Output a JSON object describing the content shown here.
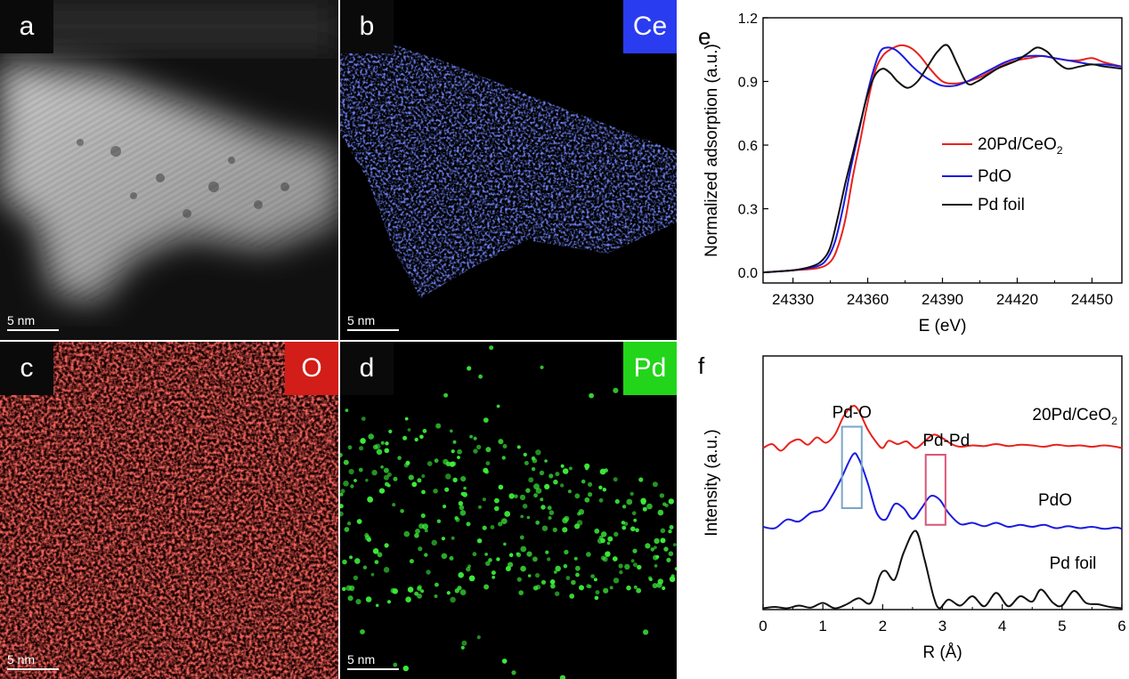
{
  "micrographs": [
    {
      "label": "a",
      "element": "",
      "scale_bar": "5 nm",
      "color": "#ffffff"
    },
    {
      "label": "b",
      "element": "Ce",
      "scale_bar": "5 nm",
      "color": "#2a3cf0"
    },
    {
      "label": "c",
      "element": "O",
      "scale_bar": "5 nm",
      "color": "#e8221c"
    },
    {
      "label": "d",
      "element": "Pd",
      "scale_bar": "5 nm",
      "color": "#22d51a"
    }
  ],
  "chart_data": [
    {
      "panel_label": "e",
      "type": "line",
      "xlabel": "E (eV)",
      "ylabel": "Normalized adsorption (a.u.)",
      "xlim": [
        24318,
        24462
      ],
      "ylim": [
        -0.05,
        1.2
      ],
      "xticks": [
        24330,
        24360,
        24390,
        24420,
        24450
      ],
      "yticks": [
        0.0,
        0.3,
        0.6,
        0.9,
        1.2
      ],
      "ytick_labels": [
        "0.0",
        "0.3",
        "0.6",
        "0.9",
        "1.2"
      ],
      "legend": {
        "position": "center-right"
      },
      "series": [
        {
          "name": "20Pd/CeO2",
          "name_main": "20Pd/CeO",
          "name_sub": "2",
          "color": "#e8221c",
          "x": [
            24318,
            24330,
            24340,
            24345,
            24348,
            24351,
            24354,
            24357,
            24360,
            24363,
            24366,
            24369,
            24373,
            24377,
            24381,
            24385,
            24390,
            24395,
            24400,
            24405,
            24410,
            24415,
            24420,
            24425,
            24430,
            24435,
            24440,
            24445,
            24450,
            24455,
            24462
          ],
          "y": [
            0.0,
            0.01,
            0.02,
            0.05,
            0.12,
            0.25,
            0.45,
            0.62,
            0.8,
            0.95,
            1.02,
            1.05,
            1.07,
            1.06,
            1.02,
            0.96,
            0.9,
            0.89,
            0.9,
            0.92,
            0.95,
            0.98,
            1.0,
            1.01,
            1.02,
            1.01,
            1.0,
            1.0,
            1.01,
            0.99,
            0.97
          ]
        },
        {
          "name": "PdO",
          "color": "#1a1ae0",
          "x": [
            24318,
            24330,
            24340,
            24344,
            24347,
            24350,
            24353,
            24356,
            24359,
            24362,
            24365,
            24368,
            24371,
            24374,
            24378,
            24382,
            24386,
            24390,
            24395,
            24400,
            24405,
            24410,
            24415,
            24420,
            24425,
            24430,
            24435,
            24440,
            24445,
            24450,
            24455,
            24462
          ],
          "y": [
            0.0,
            0.01,
            0.03,
            0.07,
            0.15,
            0.3,
            0.48,
            0.64,
            0.8,
            0.94,
            1.04,
            1.06,
            1.05,
            1.02,
            0.97,
            0.93,
            0.9,
            0.88,
            0.88,
            0.9,
            0.93,
            0.96,
            0.99,
            1.01,
            1.02,
            1.02,
            1.01,
            1.0,
            0.99,
            0.98,
            0.98,
            0.97
          ]
        },
        {
          "name": "Pd foil",
          "color": "#111111",
          "x": [
            24318,
            24330,
            24338,
            24342,
            24345,
            24348,
            24351,
            24354,
            24357,
            24360,
            24363,
            24366,
            24369,
            24372,
            24376,
            24380,
            24384,
            24388,
            24392,
            24396,
            24400,
            24404,
            24408,
            24412,
            24416,
            24420,
            24424,
            24428,
            24432,
            24436,
            24440,
            24445,
            24450,
            24455,
            24462
          ],
          "y": [
            0.0,
            0.01,
            0.03,
            0.06,
            0.12,
            0.26,
            0.42,
            0.56,
            0.7,
            0.84,
            0.93,
            0.96,
            0.94,
            0.9,
            0.87,
            0.9,
            0.97,
            1.04,
            1.07,
            0.98,
            0.89,
            0.9,
            0.93,
            0.96,
            0.98,
            1.0,
            1.03,
            1.06,
            1.04,
            0.99,
            0.96,
            0.97,
            0.98,
            0.97,
            0.96
          ]
        }
      ]
    },
    {
      "panel_label": "f",
      "type": "line",
      "xlabel": "R (Å)",
      "ylabel": "Intensity (a.u.)",
      "xlim": [
        0,
        6
      ],
      "ylim": [
        0,
        3.8
      ],
      "xticks": [
        0,
        1,
        2,
        3,
        4,
        5,
        6
      ],
      "show_yticks": false,
      "annotations": [
        {
          "text": "Pd-O",
          "box_x": [
            1.32,
            1.65
          ],
          "box_y": [
            1.52,
            2.74
          ],
          "color": "#7aa6c8"
        },
        {
          "text": "Pd-Pd",
          "box_x": [
            2.72,
            3.05
          ],
          "box_y": [
            1.27,
            2.32
          ],
          "color": "#d9557a"
        }
      ],
      "series": [
        {
          "name": "20Pd/CeO2",
          "name_main": "20Pd/CeO",
          "name_sub": "2",
          "color": "#e8221c",
          "x": [
            0,
            0.15,
            0.3,
            0.45,
            0.6,
            0.75,
            0.9,
            1.05,
            1.2,
            1.35,
            1.5,
            1.6,
            1.75,
            1.9,
            2.0,
            2.1,
            2.25,
            2.4,
            2.55,
            2.7,
            2.85,
            3.0,
            3.15,
            3.3,
            3.5,
            3.7,
            3.9,
            4.1,
            4.3,
            4.5,
            4.7,
            4.9,
            5.1,
            5.3,
            5.5,
            5.7,
            5.9,
            6.0
          ],
          "y": [
            2.42,
            2.48,
            2.38,
            2.5,
            2.55,
            2.47,
            2.58,
            2.5,
            2.62,
            2.9,
            3.05,
            2.98,
            2.7,
            2.5,
            2.42,
            2.53,
            2.48,
            2.52,
            2.42,
            2.52,
            2.62,
            2.57,
            2.48,
            2.44,
            2.46,
            2.45,
            2.48,
            2.45,
            2.47,
            2.46,
            2.44,
            2.47,
            2.45,
            2.46,
            2.44,
            2.46,
            2.44,
            2.42
          ]
        },
        {
          "name": "PdO",
          "color": "#1a1ae0",
          "x": [
            0,
            0.2,
            0.4,
            0.6,
            0.8,
            1.0,
            1.15,
            1.3,
            1.5,
            1.6,
            1.75,
            1.9,
            2.05,
            2.2,
            2.35,
            2.5,
            2.65,
            2.8,
            2.95,
            3.1,
            3.3,
            3.5,
            3.7,
            3.9,
            4.1,
            4.3,
            4.5,
            4.7,
            4.9,
            5.1,
            5.3,
            5.5,
            5.7,
            5.9,
            6.0
          ],
          "y": [
            1.24,
            1.22,
            1.35,
            1.32,
            1.45,
            1.5,
            1.7,
            1.95,
            2.32,
            2.26,
            1.9,
            1.45,
            1.35,
            1.58,
            1.52,
            1.36,
            1.52,
            1.7,
            1.65,
            1.45,
            1.28,
            1.3,
            1.25,
            1.3,
            1.24,
            1.27,
            1.24,
            1.27,
            1.22,
            1.25,
            1.22,
            1.24,
            1.21,
            1.23,
            1.21
          ]
        },
        {
          "name": "Pd foil",
          "color": "#111111",
          "x": [
            0,
            0.2,
            0.4,
            0.6,
            0.8,
            1.0,
            1.2,
            1.4,
            1.6,
            1.8,
            1.95,
            2.05,
            2.2,
            2.35,
            2.55,
            2.7,
            2.85,
            2.95,
            3.1,
            3.3,
            3.5,
            3.7,
            3.9,
            4.1,
            4.3,
            4.5,
            4.65,
            4.85,
            5.0,
            5.2,
            5.4,
            5.6,
            5.8,
            6.0
          ],
          "y": [
            0.02,
            0.04,
            0.02,
            0.06,
            0.03,
            0.1,
            0.02,
            0.08,
            0.17,
            0.1,
            0.5,
            0.58,
            0.45,
            0.85,
            1.18,
            0.75,
            0.2,
            0.02,
            0.15,
            0.06,
            0.2,
            0.05,
            0.25,
            0.05,
            0.2,
            0.12,
            0.3,
            0.1,
            0.06,
            0.28,
            0.1,
            0.08,
            0.04,
            0.02
          ]
        }
      ]
    }
  ]
}
